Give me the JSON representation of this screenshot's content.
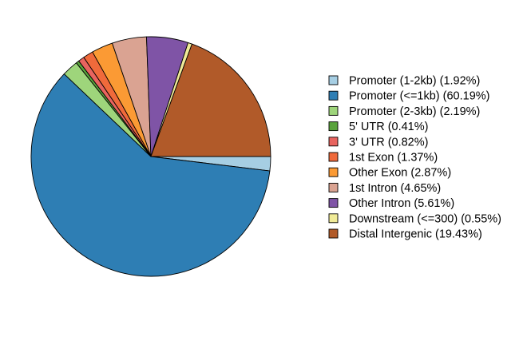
{
  "chart_data": {
    "type": "pie",
    "title": "",
    "start": "right (0 degrees), clockwise",
    "legend_placement": "right",
    "slices": [
      {
        "label": "Promoter (1-2kb) (1.92%)",
        "value": 1.92,
        "color": "#A6CEE3"
      },
      {
        "label": "Promoter (<=1kb) (60.19%)",
        "value": 60.19,
        "color": "#2E7EB4"
      },
      {
        "label": "Promoter (2-3kb) (2.19%)",
        "value": 2.19,
        "color": "#9ED57B"
      },
      {
        "label": "5' UTR (0.41%)",
        "value": 0.41,
        "color": "#59A33C"
      },
      {
        "label": "3' UTR (0.82%)",
        "value": 0.82,
        "color": "#E8645F"
      },
      {
        "label": "1st Exon (1.37%)",
        "value": 1.37,
        "color": "#F06A3B"
      },
      {
        "label": "Other Exon (2.87%)",
        "value": 2.87,
        "color": "#FB9A34"
      },
      {
        "label": "1st Intron (4.65%)",
        "value": 4.65,
        "color": "#DAA392"
      },
      {
        "label": "Other Intron (5.61%)",
        "value": 5.61,
        "color": "#7F54A6"
      },
      {
        "label": "Downstream (<=300) (0.55%)",
        "value": 0.55,
        "color": "#F0EB98"
      },
      {
        "label": "Distal Intergenic (19.43%)",
        "value": 19.43,
        "color": "#B15A29"
      }
    ]
  }
}
